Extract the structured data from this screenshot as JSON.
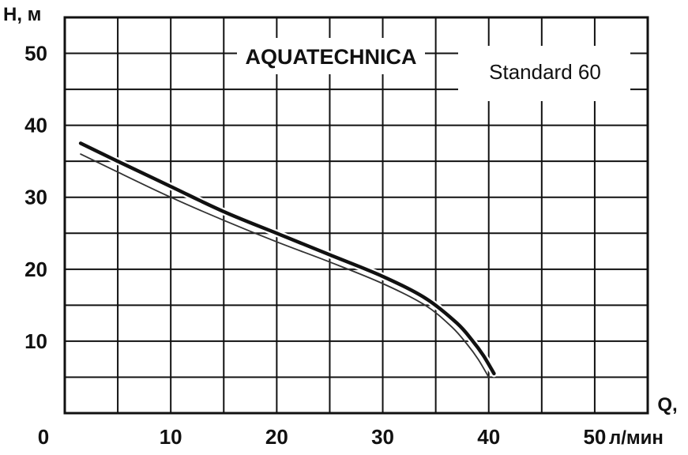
{
  "chart_data": {
    "type": "line",
    "ylabel": "H, м",
    "xlabel_top": "Q,",
    "xlabel_unit": "л/мин",
    "x_ticks": [
      0,
      10,
      20,
      30,
      40,
      50
    ],
    "y_ticks": [
      10,
      20,
      30,
      40,
      50
    ],
    "xlim": [
      0,
      55
    ],
    "ylim": [
      0,
      55
    ],
    "grid": true,
    "annotations": {
      "brand": "AQUATECHNICA",
      "model": "Standard 60"
    },
    "series": [
      {
        "style": "thick",
        "color": "#111111",
        "points": [
          [
            1.5,
            37.5
          ],
          [
            5,
            35
          ],
          [
            10,
            31.5
          ],
          [
            15,
            28
          ],
          [
            20,
            25
          ],
          [
            25,
            22
          ],
          [
            30,
            19
          ],
          [
            34,
            16
          ],
          [
            37,
            12.5
          ],
          [
            38.5,
            10
          ],
          [
            39.5,
            8
          ],
          [
            40.5,
            5.5
          ]
        ]
      },
      {
        "style": "thin",
        "color": "#333333",
        "points": [
          [
            1.5,
            36
          ],
          [
            5,
            33.5
          ],
          [
            10,
            30
          ],
          [
            15,
            26.8
          ],
          [
            20,
            23.8
          ],
          [
            25,
            21
          ],
          [
            30,
            18
          ],
          [
            34,
            15
          ],
          [
            36.5,
            12
          ],
          [
            38,
            9.5
          ],
          [
            39,
            7.5
          ],
          [
            40,
            5
          ]
        ]
      }
    ]
  }
}
